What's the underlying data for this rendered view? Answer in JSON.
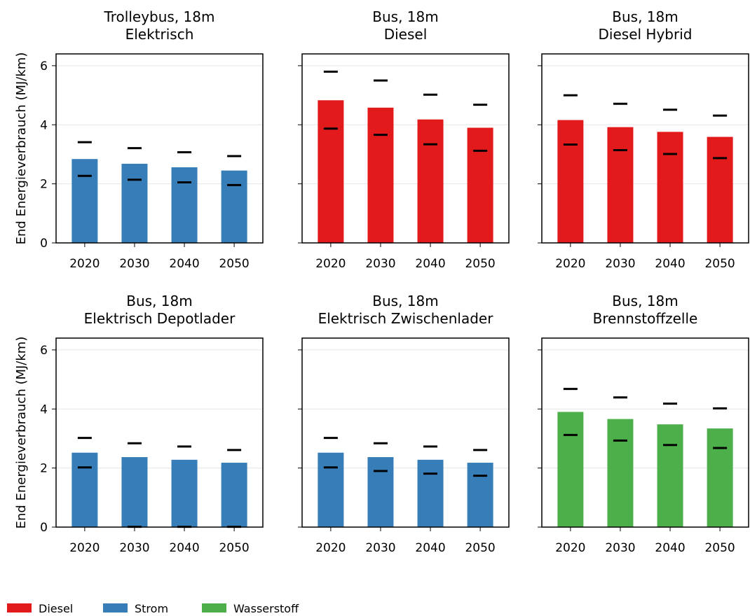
{
  "colors": {
    "Diesel": "#e31a1c",
    "Strom": "#377eb8",
    "Wasserstoff": "#4daf4a"
  },
  "legend": {
    "placement": "bottom-left",
    "items": [
      {
        "label": "Diesel",
        "color": "#e31a1c"
      },
      {
        "label": "Strom",
        "color": "#377eb8"
      },
      {
        "label": "Wasserstoff",
        "color": "#4daf4a"
      }
    ]
  },
  "chart_data": [
    {
      "type": "bar",
      "title": "Trolleybus, 18m\nElektrisch",
      "ylabel": "End Energieverbrauch (MJ/km)",
      "xlabel": "",
      "ylim": [
        0,
        6.4
      ],
      "yticks": [
        0,
        2,
        4,
        6
      ],
      "grid": true,
      "categories": [
        "2020",
        "2030",
        "2040",
        "2050"
      ],
      "series": [
        {
          "name": "Strom",
          "values": [
            2.84,
            2.68,
            2.56,
            2.45
          ]
        }
      ],
      "upper": [
        3.41,
        3.21,
        3.07,
        2.94
      ],
      "lower": [
        2.27,
        2.14,
        2.05,
        1.96
      ]
    },
    {
      "type": "bar",
      "title": "Bus, 18m\nDiesel",
      "ylabel": "",
      "xlabel": "",
      "ylim": [
        0,
        6.4
      ],
      "yticks": [
        0,
        2,
        4,
        6
      ],
      "grid": true,
      "categories": [
        "2020",
        "2030",
        "2040",
        "2050"
      ],
      "series": [
        {
          "name": "Diesel",
          "values": [
            4.83,
            4.58,
            4.18,
            3.9
          ]
        }
      ],
      "upper": [
        5.8,
        5.5,
        5.02,
        4.68
      ],
      "lower": [
        3.87,
        3.66,
        3.34,
        3.12
      ]
    },
    {
      "type": "bar",
      "title": "Bus, 18m\nDiesel Hybrid",
      "ylabel": "",
      "xlabel": "",
      "ylim": [
        0,
        6.4
      ],
      "yticks": [
        0,
        2,
        4,
        6
      ],
      "grid": true,
      "categories": [
        "2020",
        "2030",
        "2040",
        "2050"
      ],
      "series": [
        {
          "name": "Diesel",
          "values": [
            4.16,
            3.92,
            3.76,
            3.59
          ]
        }
      ],
      "upper": [
        5.0,
        4.71,
        4.51,
        4.31
      ],
      "lower": [
        3.33,
        3.14,
        3.01,
        2.87
      ]
    },
    {
      "type": "bar",
      "title": "Bus, 18m\nElektrisch Depotlader",
      "ylabel": "End Energieverbrauch (MJ/km)",
      "xlabel": "",
      "ylim": [
        0,
        6.4
      ],
      "yticks": [
        0,
        2,
        4,
        6
      ],
      "grid": true,
      "categories": [
        "2020",
        "2030",
        "2040",
        "2050"
      ],
      "series": [
        {
          "name": "Strom",
          "values": [
            2.52,
            2.37,
            2.28,
            2.18
          ]
        }
      ],
      "upper": [
        3.02,
        2.84,
        2.73,
        2.61
      ],
      "lower": [
        2.02,
        0.01,
        0.01,
        0.01
      ]
    },
    {
      "type": "bar",
      "title": "Bus, 18m\nElektrisch Zwischenlader",
      "ylabel": "",
      "xlabel": "",
      "ylim": [
        0,
        6.4
      ],
      "yticks": [
        0,
        2,
        4,
        6
      ],
      "grid": true,
      "categories": [
        "2020",
        "2030",
        "2040",
        "2050"
      ],
      "series": [
        {
          "name": "Strom",
          "values": [
            2.52,
            2.37,
            2.28,
            2.18
          ]
        }
      ],
      "upper": [
        3.02,
        2.84,
        2.73,
        2.61
      ],
      "lower": [
        2.02,
        1.9,
        1.81,
        1.74
      ]
    },
    {
      "type": "bar",
      "title": "Bus, 18m\nBrennstoffzelle",
      "ylabel": "",
      "xlabel": "",
      "ylim": [
        0,
        6.4
      ],
      "yticks": [
        0,
        2,
        4,
        6
      ],
      "grid": true,
      "categories": [
        "2020",
        "2030",
        "2040",
        "2050"
      ],
      "series": [
        {
          "name": "Wasserstoff",
          "values": [
            3.9,
            3.66,
            3.48,
            3.34
          ]
        }
      ],
      "upper": [
        4.68,
        4.39,
        4.18,
        4.02
      ],
      "lower": [
        3.12,
        2.93,
        2.78,
        2.68
      ]
    }
  ]
}
